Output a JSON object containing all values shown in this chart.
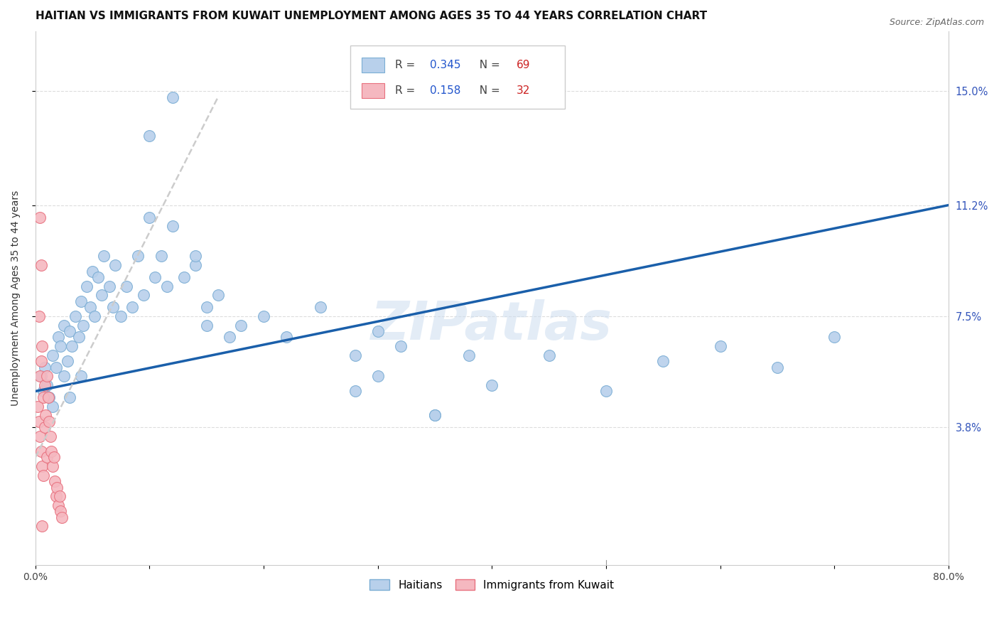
{
  "title": "HAITIAN VS IMMIGRANTS FROM KUWAIT UNEMPLOYMENT AMONG AGES 35 TO 44 YEARS CORRELATION CHART",
  "source": "Source: ZipAtlas.com",
  "ylabel": "Unemployment Among Ages 35 to 44 years",
  "ytick_labels": [
    "3.8%",
    "7.5%",
    "11.2%",
    "15.0%"
  ],
  "ytick_values": [
    0.038,
    0.075,
    0.112,
    0.15
  ],
  "xlim": [
    0.0,
    0.8
  ],
  "ylim": [
    -0.008,
    0.17
  ],
  "haitians_color": "#b8d0eb",
  "haitians_edge": "#7aadd4",
  "kuwait_color": "#f5b8c0",
  "kuwait_edge": "#e8707e",
  "regression_blue": "#1a5faa",
  "watermark": "ZIPatlas",
  "reg_line_x0": 0.0,
  "reg_line_y0": 0.05,
  "reg_line_x1": 0.8,
  "reg_line_y1": 0.112,
  "dashed_line_x0": 0.0,
  "dashed_line_y0": 0.028,
  "dashed_line_x1": 0.16,
  "dashed_line_y1": 0.148,
  "haitians_x": [
    0.005,
    0.007,
    0.008,
    0.01,
    0.012,
    0.015,
    0.015,
    0.018,
    0.02,
    0.022,
    0.025,
    0.025,
    0.028,
    0.03,
    0.03,
    0.032,
    0.035,
    0.038,
    0.04,
    0.04,
    0.042,
    0.045,
    0.048,
    0.05,
    0.052,
    0.055,
    0.058,
    0.06,
    0.065,
    0.068,
    0.07,
    0.075,
    0.08,
    0.085,
    0.09,
    0.095,
    0.1,
    0.105,
    0.11,
    0.115,
    0.12,
    0.13,
    0.14,
    0.15,
    0.16,
    0.18,
    0.2,
    0.22,
    0.25,
    0.28,
    0.3,
    0.32,
    0.35,
    0.38,
    0.4,
    0.45,
    0.5,
    0.55,
    0.6,
    0.65,
    0.7,
    0.28,
    0.3,
    0.35,
    0.1,
    0.12,
    0.14,
    0.15,
    0.17
  ],
  "haitians_y": [
    0.055,
    0.05,
    0.058,
    0.052,
    0.048,
    0.062,
    0.045,
    0.058,
    0.068,
    0.065,
    0.072,
    0.055,
    0.06,
    0.07,
    0.048,
    0.065,
    0.075,
    0.068,
    0.08,
    0.055,
    0.072,
    0.085,
    0.078,
    0.09,
    0.075,
    0.088,
    0.082,
    0.095,
    0.085,
    0.078,
    0.092,
    0.075,
    0.085,
    0.078,
    0.095,
    0.082,
    0.108,
    0.088,
    0.095,
    0.085,
    0.105,
    0.088,
    0.092,
    0.078,
    0.082,
    0.072,
    0.075,
    0.068,
    0.078,
    0.062,
    0.07,
    0.065,
    0.042,
    0.062,
    0.052,
    0.062,
    0.05,
    0.06,
    0.065,
    0.058,
    0.068,
    0.05,
    0.055,
    0.042,
    0.135,
    0.148,
    0.095,
    0.072,
    0.068
  ],
  "kuwait_x": [
    0.002,
    0.003,
    0.004,
    0.004,
    0.005,
    0.005,
    0.006,
    0.006,
    0.007,
    0.007,
    0.008,
    0.008,
    0.009,
    0.01,
    0.01,
    0.011,
    0.012,
    0.013,
    0.014,
    0.015,
    0.016,
    0.017,
    0.018,
    0.019,
    0.02,
    0.021,
    0.022,
    0.023,
    0.004,
    0.005,
    0.003,
    0.006
  ],
  "kuwait_y": [
    0.045,
    0.04,
    0.055,
    0.035,
    0.06,
    0.03,
    0.065,
    0.025,
    0.048,
    0.022,
    0.052,
    0.038,
    0.042,
    0.055,
    0.028,
    0.048,
    0.04,
    0.035,
    0.03,
    0.025,
    0.028,
    0.02,
    0.015,
    0.018,
    0.012,
    0.015,
    0.01,
    0.008,
    0.108,
    0.092,
    0.075,
    0.005
  ]
}
